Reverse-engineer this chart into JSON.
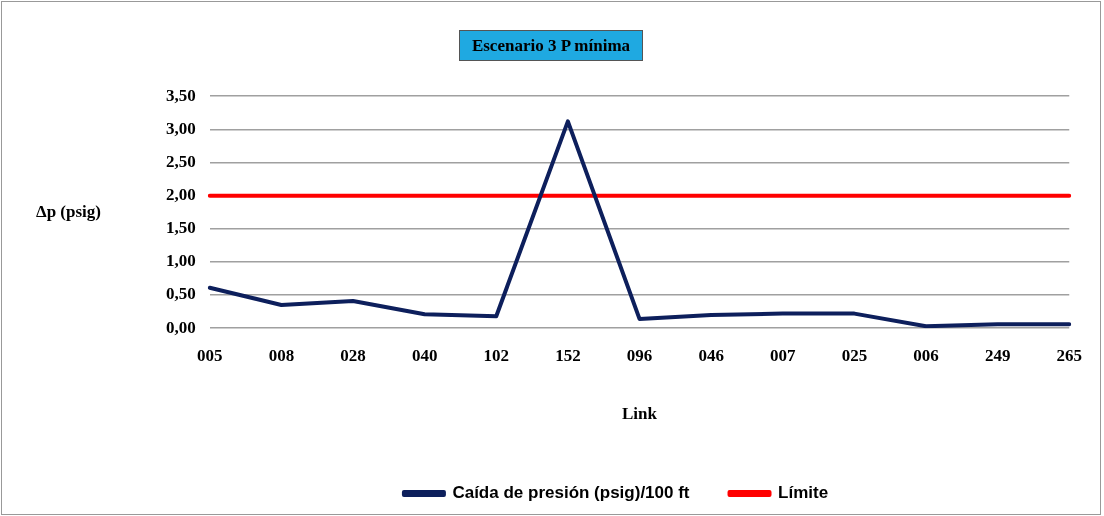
{
  "chart_data": {
    "type": "line",
    "title": "Escenario 3 P mínima",
    "xlabel": "Link",
    "ylabel": "Δp (psig)",
    "categories": [
      "005",
      "008",
      "028",
      "040",
      "102",
      "152",
      "096",
      "046",
      "007",
      "025",
      "006",
      "249",
      "265"
    ],
    "series": [
      {
        "name": "Caída de presión (psig)/100 ft",
        "color": "#0d1f5c",
        "values": [
          0.61,
          0.35,
          0.41,
          0.21,
          0.18,
          3.12,
          0.14,
          0.2,
          0.22,
          0.22,
          0.03,
          0.06,
          0.06
        ]
      },
      {
        "name": "Límite",
        "color": "#ff0000",
        "values": [
          2,
          2,
          2,
          2,
          2,
          2,
          2,
          2,
          2,
          2,
          2,
          2,
          2
        ]
      }
    ],
    "ylim": [
      0,
      3.5
    ],
    "yticks": [
      {
        "value": 0,
        "label": "0,00"
      },
      {
        "value": 0.5,
        "label": "0,50"
      },
      {
        "value": 1,
        "label": "1,00"
      },
      {
        "value": 1.5,
        "label": "1,50"
      },
      {
        "value": 2,
        "label": "2,00"
      },
      {
        "value": 2.5,
        "label": "2,50"
      },
      {
        "value": 3,
        "label": "3,00"
      },
      {
        "value": 3.5,
        "label": "3,50"
      }
    ],
    "grid": "y",
    "legend": "bottom",
    "marker": "none",
    "line_style": "solid"
  }
}
